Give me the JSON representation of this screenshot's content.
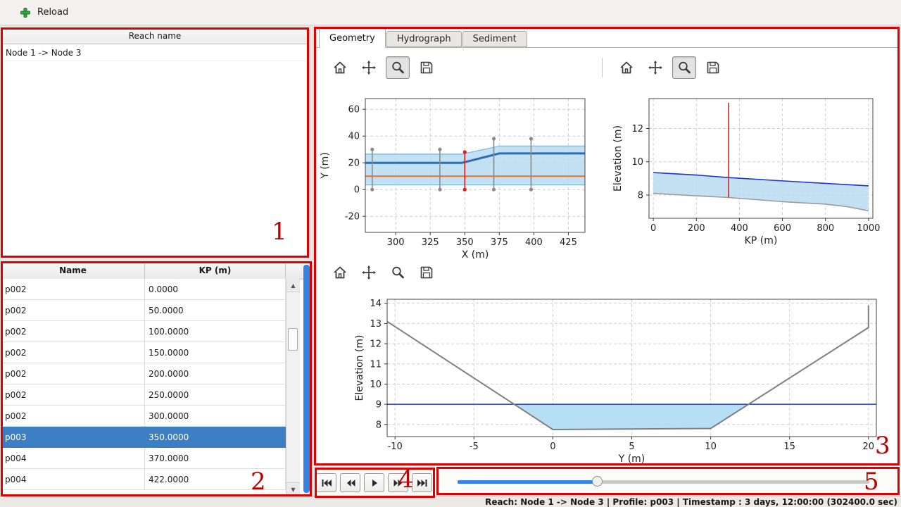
{
  "topbar": {
    "reload_label": "Reload"
  },
  "icons": {
    "scroll_up": "▲",
    "scroll_down": "▼"
  },
  "reach_panel": {
    "header": "Reach name",
    "items": [
      "Node 1 -> Node 3"
    ]
  },
  "profile_table": {
    "columns": [
      "Name",
      "KP (m)"
    ],
    "rows": [
      {
        "name": "p002",
        "kp": "0.0000",
        "selected": false
      },
      {
        "name": "p002",
        "kp": "50.0000",
        "selected": false
      },
      {
        "name": "p002",
        "kp": "100.0000",
        "selected": false
      },
      {
        "name": "p002",
        "kp": "150.0000",
        "selected": false
      },
      {
        "name": "p002",
        "kp": "200.0000",
        "selected": false
      },
      {
        "name": "p002",
        "kp": "250.0000",
        "selected": false
      },
      {
        "name": "p002",
        "kp": "300.0000",
        "selected": false
      },
      {
        "name": "p003",
        "kp": "350.0000",
        "selected": true
      },
      {
        "name": "p004",
        "kp": "370.0000",
        "selected": false
      },
      {
        "name": "p004",
        "kp": "422.0000",
        "selected": false
      }
    ]
  },
  "tabs": [
    {
      "label": "Geometry",
      "active": true
    },
    {
      "label": "Hydrograph",
      "active": false
    },
    {
      "label": "Sediment",
      "active": false
    }
  ],
  "plot_toolbar_icons": [
    "home",
    "pan",
    "zoom",
    "save"
  ],
  "plot_toolbars": [
    {
      "name": "plan-view-toolbar",
      "pressed": "zoom"
    },
    {
      "name": "long-profile-toolbar",
      "pressed": "zoom"
    },
    {
      "name": "cross-section-toolbar",
      "pressed": null
    }
  ],
  "playback": {
    "buttons": [
      "skip-start",
      "rewind",
      "play",
      "fast-forward",
      "skip-end"
    ]
  },
  "slider": {
    "progress_pct": 34
  },
  "statusbar": {
    "text": "Reach: Node 1 -> Node 3 | Profile: p003 | Timestamp : 3 days, 12:00:00 (302400.0 sec)"
  },
  "annotations": {
    "labels": [
      "1",
      "2",
      "3",
      "4",
      "5"
    ]
  },
  "colors": {
    "accent": "#3584e4",
    "selection": "#3d7fc4",
    "annotation": "#dd0000",
    "annotation_number": "#bb0000"
  },
  "chart_data": [
    {
      "id": "plan-view",
      "type": "line",
      "xlabel": "X (m)",
      "ylabel": "Y (m)",
      "xlim": [
        278,
        437
      ],
      "ylim": [
        -32,
        68
      ],
      "xticks": [
        300,
        325,
        350,
        375,
        400,
        425
      ],
      "yticks": [
        -20,
        0,
        20,
        40,
        60
      ],
      "grid": true,
      "fills": [
        {
          "name": "channel-area",
          "color": "#b8dcf0",
          "opacity": 0.85,
          "points": [
            [
              278,
              26.5
            ],
            [
              348,
              26.5
            ],
            [
              375,
              32.5
            ],
            [
              437,
              32.5
            ],
            [
              437,
              3.5
            ],
            [
              278,
              3.5
            ]
          ]
        }
      ],
      "lines": [
        {
          "name": "left-bank",
          "color": "#85c1e3",
          "width": 1.5,
          "points": [
            [
              278,
              26.5
            ],
            [
              348,
              26.5
            ],
            [
              375,
              32.5
            ],
            [
              437,
              32.5
            ]
          ]
        },
        {
          "name": "right-bank",
          "color": "#85c1e3",
          "width": 1.5,
          "points": [
            [
              278,
              3.5
            ],
            [
              437,
              3.5
            ]
          ]
        },
        {
          "name": "main-channel",
          "color": "#2e6db4",
          "width": 3,
          "points": [
            [
              278,
              20
            ],
            [
              348,
              20
            ],
            [
              375,
              27
            ],
            [
              437,
              27
            ]
          ]
        },
        {
          "name": "thalweg",
          "color": "#e8722a",
          "width": 2,
          "points": [
            [
              278,
              10
            ],
            [
              437,
              10
            ]
          ]
        }
      ],
      "vlines": [
        {
          "x": 283,
          "y0": 0,
          "y1": 30,
          "color": "#8a8a8a",
          "markers": true
        },
        {
          "x": 332,
          "y0": 0,
          "y1": 30,
          "color": "#8a8a8a",
          "markers": true
        },
        {
          "x": 350,
          "y0": 0,
          "y1": 28,
          "color": "#e01b1b",
          "markers": true
        },
        {
          "x": 371,
          "y0": 0,
          "y1": 38,
          "color": "#8a8a8a",
          "markers": true
        },
        {
          "x": 398,
          "y0": 0,
          "y1": 38,
          "color": "#8a8a8a",
          "markers": true
        }
      ]
    },
    {
      "id": "long-profile",
      "type": "line",
      "xlabel": "KP (m)",
      "ylabel": "Elevation (m)",
      "xlim": [
        -20,
        1020
      ],
      "ylim": [
        6.6,
        13.8
      ],
      "xticks": [
        0,
        200,
        400,
        600,
        800,
        1000
      ],
      "yticks": [
        8,
        10,
        12
      ],
      "grid": true,
      "fills": [
        {
          "name": "water-body",
          "color": "#b8dcf0",
          "opacity": 0.85,
          "points": [
            [
              0,
              9.35
            ],
            [
              200,
              9.2
            ],
            [
              350,
              9.05
            ],
            [
              600,
              8.85
            ],
            [
              800,
              8.7
            ],
            [
              1000,
              8.55
            ],
            [
              1000,
              7.05
            ],
            [
              900,
              7.3
            ],
            [
              800,
              7.45
            ],
            [
              600,
              7.6
            ],
            [
              350,
              7.85
            ],
            [
              200,
              7.95
            ],
            [
              0,
              8.1
            ]
          ]
        }
      ],
      "lines": [
        {
          "name": "water-surface",
          "color": "#1a35d0",
          "width": 1.6,
          "points": [
            [
              0,
              9.35
            ],
            [
              200,
              9.2
            ],
            [
              350,
              9.05
            ],
            [
              600,
              8.85
            ],
            [
              800,
              8.7
            ],
            [
              1000,
              8.55
            ]
          ]
        },
        {
          "name": "bed-profile",
          "color": "#9a9a9a",
          "width": 1.6,
          "points": [
            [
              0,
              8.1
            ],
            [
              200,
              7.95
            ],
            [
              350,
              7.85
            ],
            [
              600,
              7.6
            ],
            [
              800,
              7.45
            ],
            [
              900,
              7.3
            ],
            [
              1000,
              7.05
            ]
          ]
        }
      ],
      "vlines": [
        {
          "x": 350,
          "y0": 7.85,
          "y1": 13.55,
          "color": "#e01b1b",
          "markers": false
        }
      ]
    },
    {
      "id": "cross-section",
      "type": "line",
      "xlabel": "Y (m)",
      "ylabel": "Elevation (m)",
      "xlim": [
        -10.5,
        20.5
      ],
      "ylim": [
        7.4,
        14.2
      ],
      "xticks": [
        -10,
        -5,
        0,
        5,
        10,
        15,
        20
      ],
      "yticks": [
        8,
        9,
        10,
        11,
        12,
        13,
        14
      ],
      "grid": true,
      "fills": [
        {
          "name": "water-area",
          "color": "#aedcf2",
          "opacity": 0.9,
          "points": [
            [
              -2.45,
              9
            ],
            [
              12.4,
              9
            ],
            [
              10,
              7.8
            ],
            [
              0,
              7.75
            ]
          ]
        }
      ],
      "lines": [
        {
          "name": "water-level",
          "color": "#2233cc",
          "width": 1.4,
          "points": [
            [
              -10.5,
              9
            ],
            [
              20.5,
              9
            ]
          ]
        },
        {
          "name": "bed-section",
          "color": "#808080",
          "width": 2,
          "points": [
            [
              -10.5,
              13.1
            ],
            [
              0,
              7.75
            ],
            [
              10,
              7.8
            ],
            [
              20,
              12.8
            ],
            [
              20,
              13.9
            ]
          ]
        }
      ],
      "vlines": []
    }
  ]
}
